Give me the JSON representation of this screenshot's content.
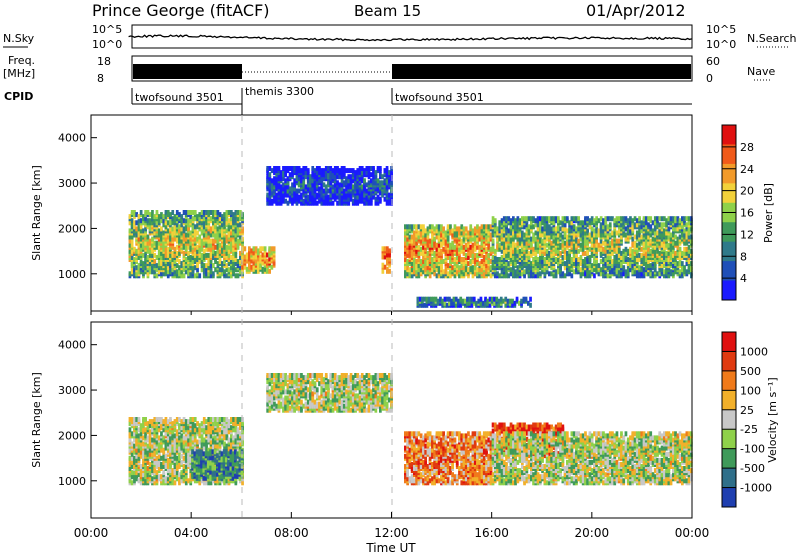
{
  "header": {
    "station": "Prince George (fitACF)",
    "beam": "Beam 15",
    "date": "01/Apr/2012"
  },
  "top_panels": {
    "nsky_label": "N.Sky",
    "nsky_ticks": [
      "10^5",
      "10^0"
    ],
    "nsearch_label": "N.Search",
    "nsearch_ticks": [
      "10^5",
      "10^0"
    ],
    "freq_label_1": "Freq.",
    "freq_label_2": "[MHz]",
    "freq_ticks": [
      "18",
      "8"
    ],
    "nave_label": "Nave",
    "nave_ticks": [
      "60",
      "0"
    ],
    "cpid_label": "CPID",
    "cpid_segments": [
      {
        "name": "twofsound 3501",
        "start": 1.5,
        "end": 6.0
      },
      {
        "name": "themis 3300",
        "start": 6.0,
        "end": 12.0
      },
      {
        "name": "twofsound 3501",
        "start": 12.0,
        "end": 24.0
      }
    ]
  },
  "x_axis": {
    "label": "Time UT",
    "ticks": [
      "00:00",
      "04:00",
      "08:00",
      "12:00",
      "16:00",
      "20:00",
      "00:00"
    ]
  },
  "chart_data": [
    {
      "type": "heatmap",
      "quantity": "Power",
      "ylabel": "Slant Range [km]",
      "ylim": [
        180,
        4500
      ],
      "xlim": [
        0,
        24
      ],
      "yticks": [
        "4000",
        "3000",
        "2000",
        "1000"
      ],
      "colorbar_label": "Power [dB]",
      "colorbar_ticks": [
        "28",
        "24",
        "20",
        "16",
        "12",
        "8",
        "4"
      ],
      "colors": [
        "#1a1aff",
        "#1f4fb8",
        "#2f7a8a",
        "#3f9a5a",
        "#8fd14a",
        "#f2d13a",
        "#f29a2a",
        "#f05a1a",
        "#e01010"
      ],
      "regions": [
        {
          "t0": 1.5,
          "t1": 6.0,
          "r0": 900,
          "r1": 2300,
          "level": 0.6
        },
        {
          "t0": 6.0,
          "t1": 7.3,
          "r0": 1000,
          "r1": 1500,
          "level": 0.8
        },
        {
          "t0": 7.0,
          "t1": 12.0,
          "r0": 2500,
          "r1": 3300,
          "level": 0.2
        },
        {
          "t0": 11.6,
          "t1": 11.9,
          "r0": 1000,
          "r1": 1500,
          "level": 0.9
        },
        {
          "t0": 12.5,
          "t1": 16.0,
          "r0": 900,
          "r1": 2000,
          "level": 0.75
        },
        {
          "t0": 16.0,
          "t1": 24.0,
          "r0": 900,
          "r1": 2200,
          "level": 0.55
        },
        {
          "t0": 13.0,
          "t1": 17.5,
          "r0": 250,
          "r1": 400,
          "level": 0.4
        }
      ]
    },
    {
      "type": "heatmap",
      "quantity": "Velocity",
      "ylabel": "Slant Range [km]",
      "ylim": [
        180,
        4500
      ],
      "xlim": [
        0,
        24
      ],
      "yticks": [
        "4000",
        "3000",
        "2000",
        "1000"
      ],
      "colorbar_label": "Velocity [m s⁻¹]",
      "colorbar_ticks": [
        "1000",
        "500",
        "100",
        "25",
        "-25",
        "-100",
        "-500",
        "-1000"
      ],
      "colors": [
        "#1f3fb0",
        "#2f6f8a",
        "#3f9a5a",
        "#8fd14a",
        "#c8c8c8",
        "#f2b02a",
        "#f07a1a",
        "#e03a10",
        "#e01010"
      ],
      "regions": [
        {
          "t0": 1.5,
          "t1": 6.0,
          "r0": 900,
          "r1": 2300,
          "level": 0.45
        },
        {
          "t0": 4.0,
          "t1": 6.0,
          "r0": 1000,
          "r1": 1600,
          "level": 0.2
        },
        {
          "t0": 7.0,
          "t1": 12.0,
          "r0": 2500,
          "r1": 3300,
          "level": 0.45
        },
        {
          "t0": 12.5,
          "t1": 16.0,
          "r0": 900,
          "r1": 2000,
          "level": 0.7
        },
        {
          "t0": 16.0,
          "t1": 18.8,
          "r0": 1500,
          "r1": 2200,
          "level": 0.85
        },
        {
          "t0": 16.0,
          "t1": 24.0,
          "r0": 900,
          "r1": 2000,
          "level": 0.45
        }
      ]
    }
  ]
}
